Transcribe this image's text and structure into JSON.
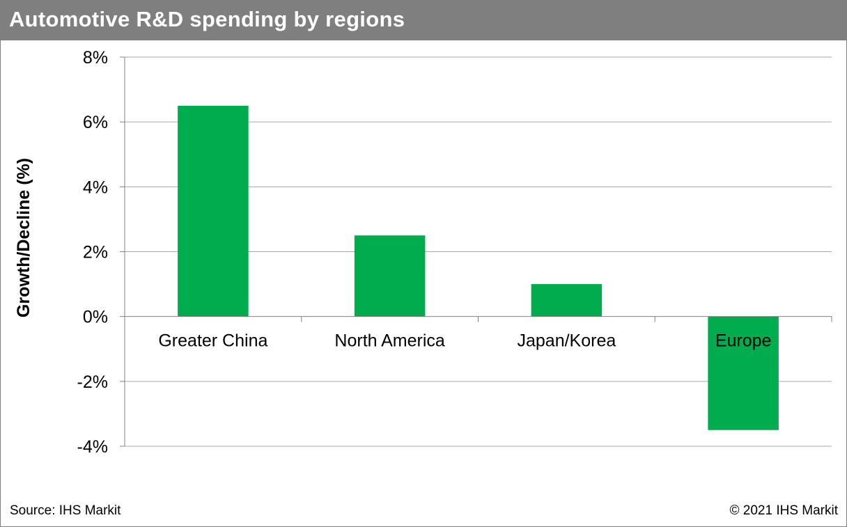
{
  "header": {
    "title": "Automotive R&D spending by regions"
  },
  "footer": {
    "source": "Source: IHS Markit",
    "copyright": "© 2021 IHS Markit"
  },
  "colors": {
    "bar": "#00ac4e",
    "title_bar": "#7f7f7f",
    "grid": "#a6a6a6"
  },
  "chart_data": {
    "type": "bar",
    "title": "Automotive R&D spending by regions",
    "xlabel": "",
    "ylabel": "Growth/Decline (%)",
    "categories": [
      "Greater China",
      "North America",
      "Japan/Korea",
      "Europe"
    ],
    "values": [
      6.5,
      2.5,
      1.0,
      -3.5
    ],
    "ylim": [
      -4,
      8
    ],
    "yticks": [
      8,
      6,
      4,
      2,
      0,
      -2,
      -4
    ],
    "ytick_labels": [
      "8%",
      "6%",
      "4%",
      "2%",
      "0%",
      "-2%",
      "-4%"
    ],
    "grid": true,
    "legend": "none"
  }
}
